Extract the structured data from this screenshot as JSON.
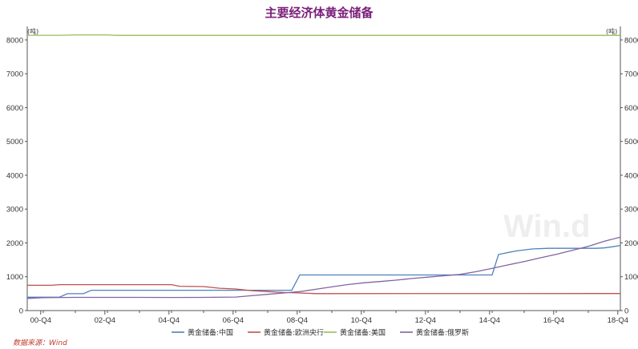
{
  "chart_data": {
    "type": "line",
    "title": "主要经济体黄金储备",
    "y_unit_left": "(吨)",
    "y_unit_right": "(吨)",
    "ylim": [
      0,
      8400
    ],
    "y_ticks": [
      0,
      1000,
      2000,
      3000,
      4000,
      5000,
      6000,
      7000,
      8000
    ],
    "x_range": [
      2000.5,
      2019.0
    ],
    "x_ticks": [
      {
        "label": "00-Q4",
        "x": 2000.92
      },
      {
        "label": "02-Q4",
        "x": 2002.92
      },
      {
        "label": "04-Q4",
        "x": 2004.92
      },
      {
        "label": "06-Q4",
        "x": 2006.92
      },
      {
        "label": "08-Q4",
        "x": 2008.92
      },
      {
        "label": "10-Q4",
        "x": 2010.92
      },
      {
        "label": "12-Q4",
        "x": 2012.92
      },
      {
        "label": "14-Q4",
        "x": 2014.92
      },
      {
        "label": "16-Q4",
        "x": 2016.92
      },
      {
        "label": "18-Q4",
        "x": 2018.92
      }
    ],
    "series": [
      {
        "name": "黄金储备:中国",
        "color": "#4e81bd",
        "points": [
          [
            2000.5,
            395
          ],
          [
            2001.5,
            395
          ],
          [
            2001.75,
            500
          ],
          [
            2002.25,
            500
          ],
          [
            2002.5,
            600
          ],
          [
            2008.75,
            600
          ],
          [
            2009.0,
            1054
          ],
          [
            2015.0,
            1054
          ],
          [
            2015.2,
            1658
          ],
          [
            2015.75,
            1762
          ],
          [
            2016.25,
            1823
          ],
          [
            2016.75,
            1842
          ],
          [
            2018.25,
            1842
          ],
          [
            2018.5,
            1852
          ],
          [
            2018.75,
            1885
          ],
          [
            2019.0,
            1926
          ]
        ]
      },
      {
        "name": "黄金储备:欧洲央行",
        "color": "#c0504d",
        "points": [
          [
            2000.5,
            747
          ],
          [
            2001.25,
            747
          ],
          [
            2001.5,
            766
          ],
          [
            2005.0,
            766
          ],
          [
            2005.25,
            720
          ],
          [
            2006.0,
            710
          ],
          [
            2006.5,
            660
          ],
          [
            2007.0,
            640
          ],
          [
            2007.5,
            590
          ],
          [
            2008.0,
            560
          ],
          [
            2008.5,
            535
          ],
          [
            2009.0,
            520
          ],
          [
            2009.5,
            502
          ],
          [
            2019.0,
            505
          ]
        ]
      },
      {
        "name": "黄金储备:美国",
        "color": "#9bbb59",
        "points": [
          [
            2000.5,
            8137
          ],
          [
            2001.5,
            8137
          ],
          [
            2002.0,
            8149
          ],
          [
            2003.0,
            8149
          ],
          [
            2003.25,
            8134
          ],
          [
            2019.0,
            8134
          ]
        ]
      },
      {
        "name": "黄金储备:俄罗斯",
        "color": "#8064a2",
        "points": [
          [
            2000.5,
            360
          ],
          [
            2001.0,
            380
          ],
          [
            2002.0,
            390
          ],
          [
            2003.0,
            390
          ],
          [
            2004.0,
            390
          ],
          [
            2005.0,
            387
          ],
          [
            2006.0,
            390
          ],
          [
            2007.0,
            400
          ],
          [
            2007.5,
            440
          ],
          [
            2008.0,
            480
          ],
          [
            2008.5,
            520
          ],
          [
            2009.0,
            560
          ],
          [
            2009.5,
            630
          ],
          [
            2010.0,
            700
          ],
          [
            2010.5,
            770
          ],
          [
            2011.0,
            820
          ],
          [
            2011.5,
            860
          ],
          [
            2012.0,
            900
          ],
          [
            2012.5,
            950
          ],
          [
            2013.0,
            990
          ],
          [
            2013.5,
            1030
          ],
          [
            2014.0,
            1070
          ],
          [
            2014.5,
            1150
          ],
          [
            2015.0,
            1250
          ],
          [
            2015.5,
            1350
          ],
          [
            2016.0,
            1450
          ],
          [
            2016.5,
            1560
          ],
          [
            2017.0,
            1660
          ],
          [
            2017.5,
            1780
          ],
          [
            2018.0,
            1900
          ],
          [
            2018.5,
            2050
          ],
          [
            2019.0,
            2170
          ]
        ]
      }
    ],
    "legend_position": "bottom",
    "grid": false
  },
  "watermark": "Win.d",
  "source": "数据来源：Wind"
}
